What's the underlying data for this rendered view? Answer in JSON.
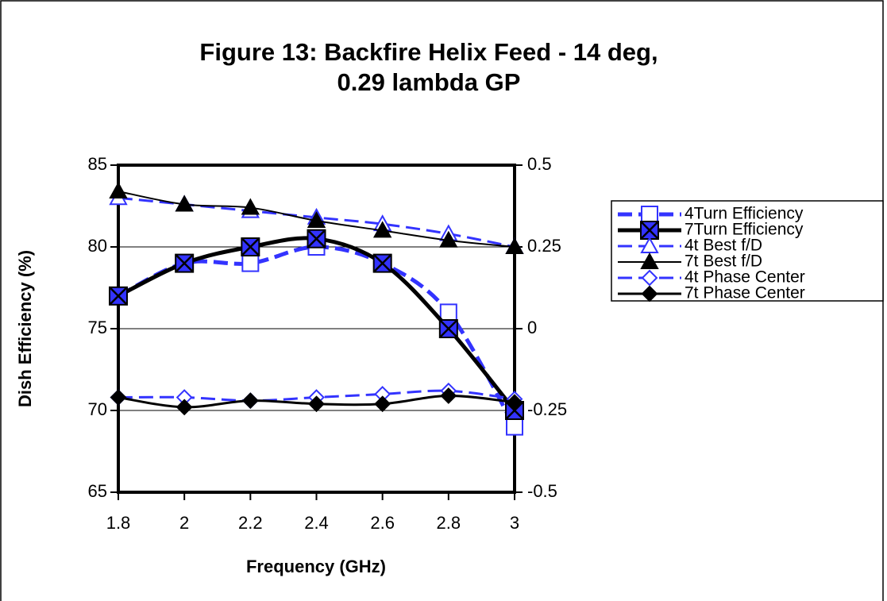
{
  "chart_data": {
    "type": "line",
    "title": [
      "Figure 13: Backfire Helix Feed - 14 deg,",
      "0.29 lambda GP"
    ],
    "xlabel": "Frequency (GHz)",
    "ylabel": "Dish Efficiency (%)",
    "x": [
      1.8,
      2.0,
      2.2,
      2.4,
      2.6,
      2.8,
      3.0
    ],
    "xlim": [
      1.8,
      3
    ],
    "xticks": [
      1.8,
      2,
      2.2,
      2.4,
      2.6,
      2.8,
      3
    ],
    "ylim": [
      65,
      85
    ],
    "yticks": [
      65,
      70,
      75,
      80,
      85
    ],
    "y2lim": [
      -0.5,
      0.5
    ],
    "y2ticks": [
      -0.5,
      -0.25,
      0,
      0.25,
      0.5
    ],
    "grid": true,
    "legend": "right",
    "series": [
      {
        "name": "4Turn Efficiency",
        "color": "#3333ff",
        "dashed": true,
        "width": 5,
        "marker": "square",
        "filled": false,
        "values": [
          77,
          79,
          79,
          80,
          79,
          76,
          69
        ]
      },
      {
        "name": "7Turn Efficiency",
        "color": "#000000",
        "dashed": false,
        "width": 5,
        "marker": "xsquare",
        "filled": true,
        "values": [
          77,
          79,
          80,
          80.5,
          79,
          75,
          70
        ]
      },
      {
        "name": "4t Best f/D",
        "color": "#3333ff",
        "dashed": true,
        "width": 3,
        "marker": "triangle",
        "filled": false,
        "axis": "y2",
        "values": [
          0.4,
          0.38,
          0.36,
          0.34,
          0.32,
          0.29,
          0.25
        ]
      },
      {
        "name": "7t Best f/D",
        "color": "#000000",
        "dashed": false,
        "width": 2,
        "marker": "triangle",
        "filled": true,
        "axis": "y2",
        "values": [
          0.42,
          0.38,
          0.37,
          0.33,
          0.3,
          0.27,
          0.25
        ]
      },
      {
        "name": "4t Phase Center",
        "color": "#3333ff",
        "dashed": true,
        "width": 3,
        "marker": "diamond",
        "filled": false,
        "axis": "y2",
        "values": [
          -0.21,
          -0.21,
          -0.22,
          -0.21,
          -0.2,
          -0.19,
          -0.215
        ]
      },
      {
        "name": "7t Phase Center",
        "color": "#000000",
        "dashed": false,
        "width": 3,
        "marker": "diamond",
        "filled": true,
        "axis": "y2",
        "values": [
          -0.21,
          -0.24,
          -0.22,
          -0.23,
          -0.23,
          -0.205,
          -0.225
        ]
      }
    ]
  }
}
